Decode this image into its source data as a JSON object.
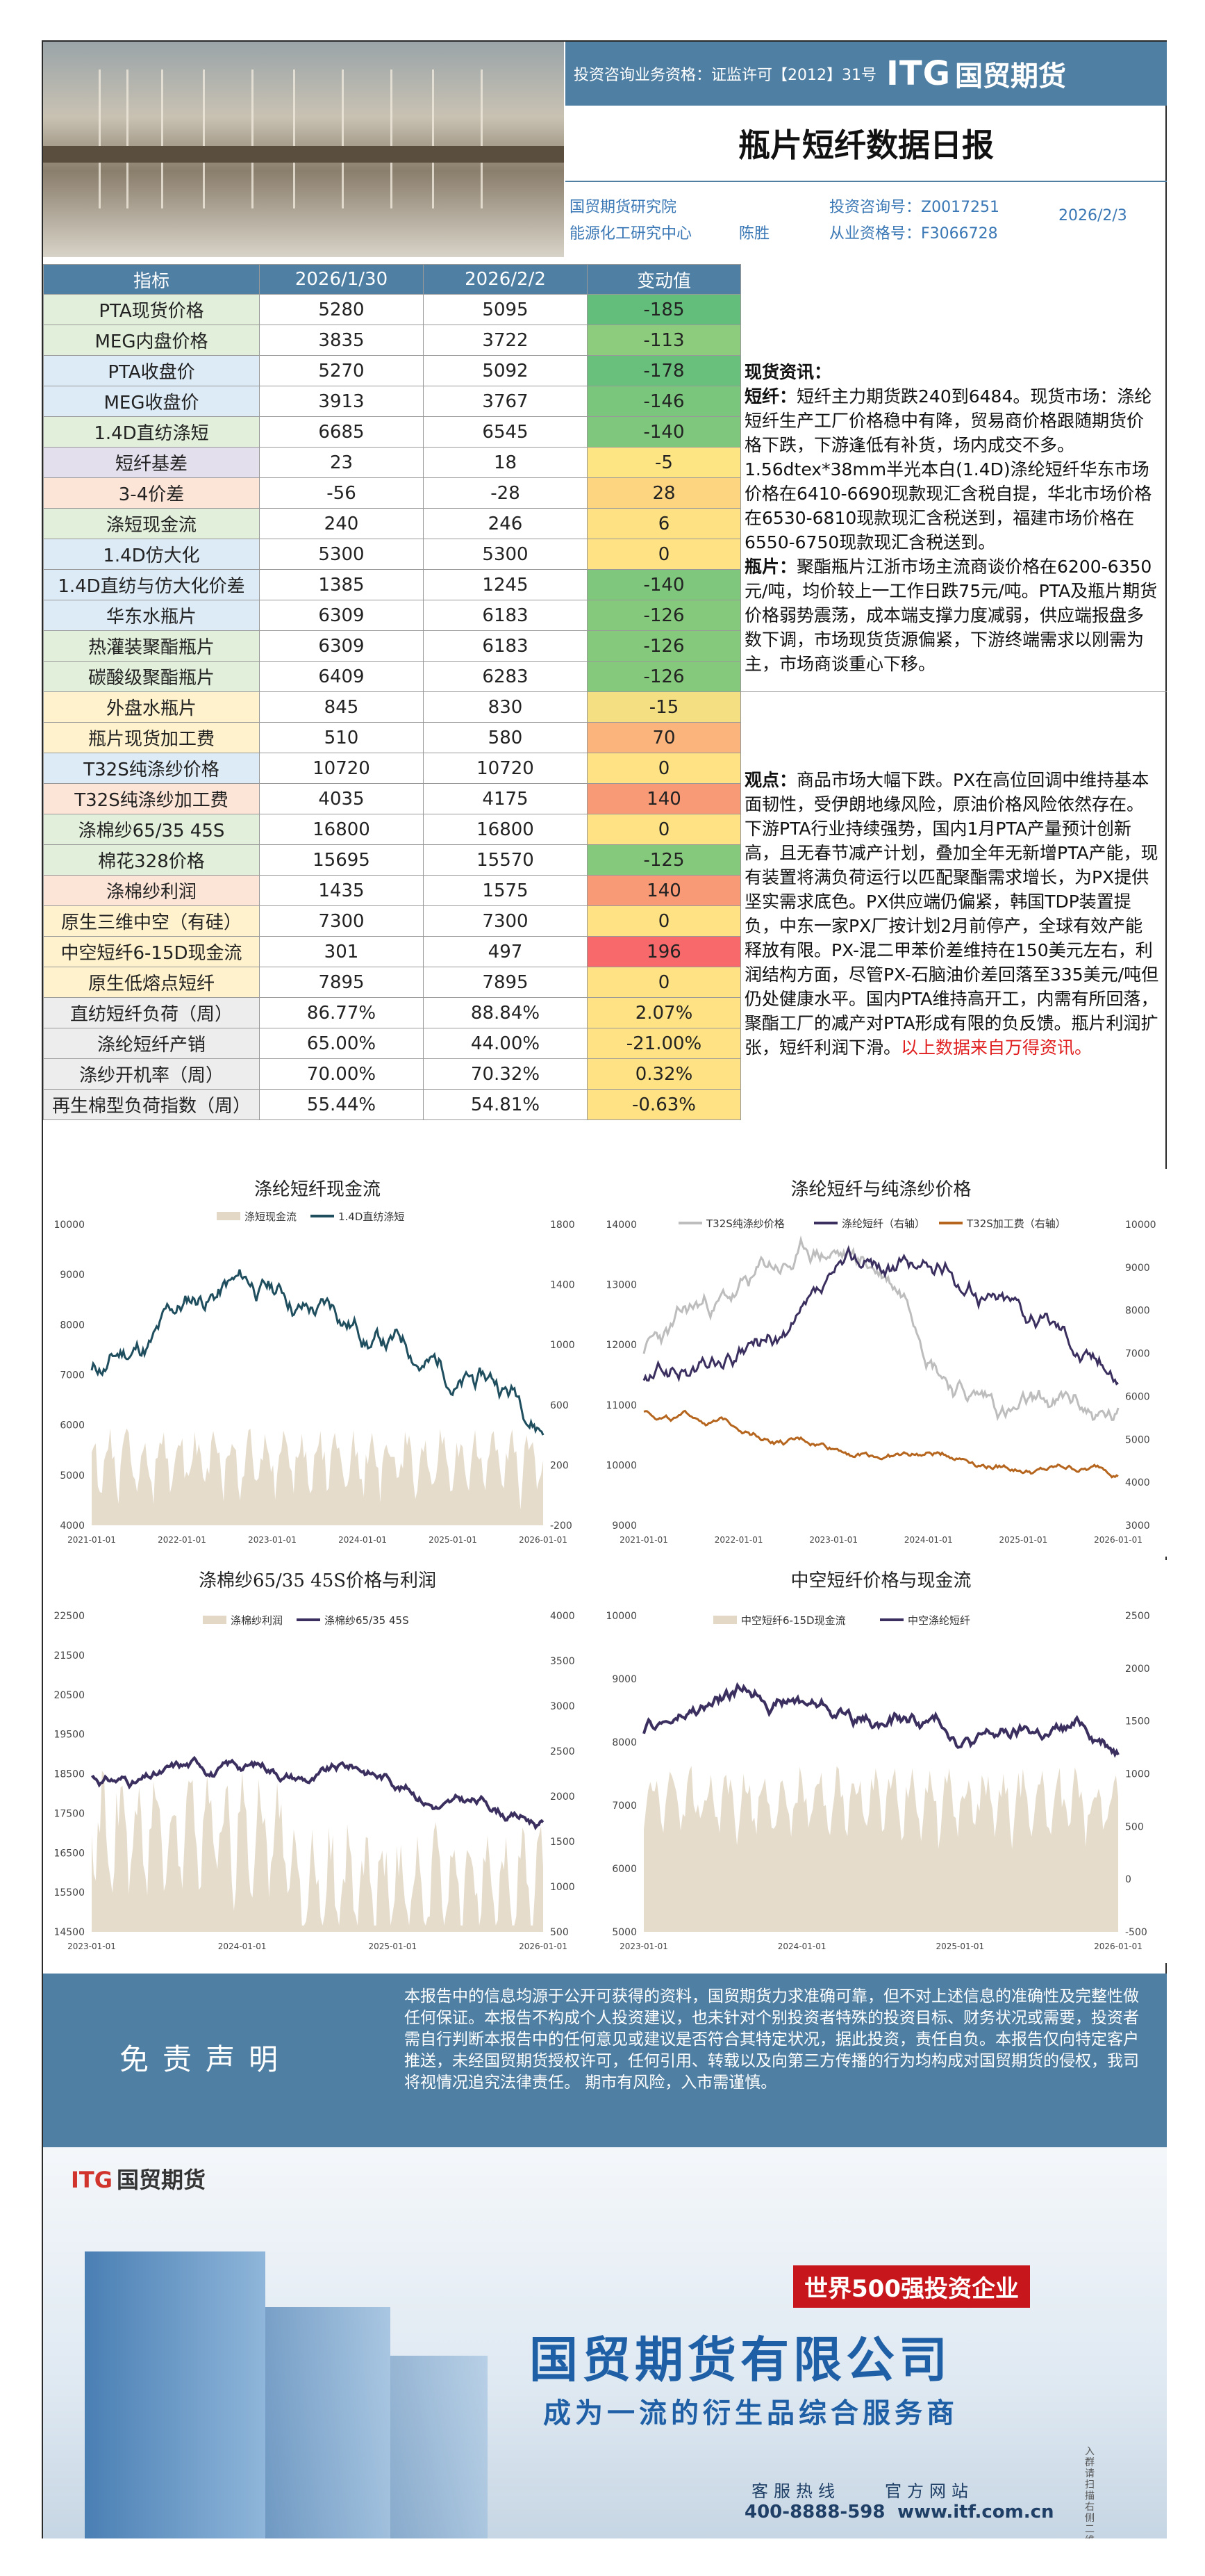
{
  "header": {
    "license": "投资咨询业务资格：证监许可【2012】31号",
    "logo": "ITG",
    "logo_cn": "国贸期货",
    "title": "瓶片短纤数据日报",
    "institute": "国贸期货研究院",
    "center": "能源化工研究中心",
    "author": "陈胜",
    "consult_label": "投资咨询号：Z0017251",
    "practice_label": "从业资格号：F3066728",
    "date": "2026/2/3"
  },
  "table": {
    "headers": [
      "指标",
      "2026/1/30",
      "2026/2/2",
      "变动值"
    ],
    "rows": [
      {
        "name": "PTA现货价格",
        "a": "5280",
        "b": "5095",
        "d": "-185",
        "nc": "#e2efda",
        "dc": "#63be7b"
      },
      {
        "name": "MEG内盘价格",
        "a": "3835",
        "b": "3722",
        "d": "-113",
        "nc": "#e2efda",
        "dc": "#8ccc7c"
      },
      {
        "name": "PTA收盘价",
        "a": "5270",
        "b": "5092",
        "d": "-178",
        "nc": "#ddebf7",
        "dc": "#69c07c"
      },
      {
        "name": "MEG收盘价",
        "a": "3913",
        "b": "3767",
        "d": "-146",
        "nc": "#ddebf7",
        "dc": "#7ac67c"
      },
      {
        "name": "1.4D直纺涤短",
        "a": "6685",
        "b": "6545",
        "d": "-140",
        "nc": "#e2efda",
        "dc": "#7ec77c"
      },
      {
        "name": "短纤基差",
        "a": "23",
        "b": "18",
        "d": "-5",
        "nc": "#e4dfec",
        "dc": "#fde583"
      },
      {
        "name": "3-4价差",
        "a": "-56",
        "b": "-28",
        "d": "28",
        "nc": "#fce4d6",
        "dc": "#fdd480"
      },
      {
        "name": "涤短现金流",
        "a": "240",
        "b": "246",
        "d": "6",
        "nc": "#e2efda",
        "dc": "#fee182"
      },
      {
        "name": "1.4D仿大化",
        "a": "5300",
        "b": "5300",
        "d": "0",
        "nc": "#ddebf7",
        "dc": "#fee283"
      },
      {
        "name": "1.4D直纺与仿大化价差",
        "a": "1385",
        "b": "1245",
        "d": "-140",
        "nc": "#ddebf7",
        "dc": "#7ec77c"
      },
      {
        "name": "华东水瓶片",
        "a": "6309",
        "b": "6183",
        "d": "-126",
        "nc": "#ddebf7",
        "dc": "#85c97c"
      },
      {
        "name": "热灌装聚酯瓶片",
        "a": "6309",
        "b": "6183",
        "d": "-126",
        "nc": "#e2efda",
        "dc": "#85c97c"
      },
      {
        "name": "碳酸级聚酯瓶片",
        "a": "6409",
        "b": "6283",
        "d": "-126",
        "nc": "#e2efda",
        "dc": "#85c97c"
      },
      {
        "name": "外盘水瓶片",
        "a": "845",
        "b": "830",
        "d": "-15",
        "nc": "#fff2cc",
        "dc": "#f4e083"
      },
      {
        "name": "瓶片现货加工费",
        "a": "510",
        "b": "580",
        "d": "70",
        "nc": "#fff2cc",
        "dc": "#fbb47b"
      },
      {
        "name": "T32S纯涤纱价格",
        "a": "10720",
        "b": "10720",
        "d": "0",
        "nc": "#ddebf7",
        "dc": "#fee283"
      },
      {
        "name": "T32S纯涤纱加工费",
        "a": "4035",
        "b": "4175",
        "d": "140",
        "nc": "#fce4d6",
        "dc": "#f99a77"
      },
      {
        "name": "涤棉纱65/35 45S",
        "a": "16800",
        "b": "16800",
        "d": "0",
        "nc": "#e2efda",
        "dc": "#fee283"
      },
      {
        "name": "棉花328价格",
        "a": "15695",
        "b": "15570",
        "d": "-125",
        "nc": "#e2efda",
        "dc": "#85c97c"
      },
      {
        "name": "涤棉纱利润",
        "a": "1435",
        "b": "1575",
        "d": "140",
        "nc": "#fce4d6",
        "dc": "#f99a77"
      },
      {
        "name": "原生三维中空（有硅）",
        "a": "7300",
        "b": "7300",
        "d": "0",
        "nc": "#fff2cc",
        "dc": "#fee283"
      },
      {
        "name": "中空短纤6-15D现金流",
        "a": "301",
        "b": "497",
        "d": "196",
        "nc": "#fff2cc",
        "dc": "#f8696b"
      },
      {
        "name": "原生低熔点短纤",
        "a": "7895",
        "b": "7895",
        "d": "0",
        "nc": "#fff2cc",
        "dc": "#fee283"
      },
      {
        "name": "直纺短纤负荷（周）",
        "a": "86.77%",
        "b": "88.84%",
        "d": "2.07%",
        "nc": "#ededed",
        "dc": "#fee283"
      },
      {
        "name": "涤纶短纤产销",
        "a": "65.00%",
        "b": "44.00%",
        "d": "-21.00%",
        "nc": "#ededed",
        "dc": "#fee283"
      },
      {
        "name": "涤纱开机率（周）",
        "a": "70.00%",
        "b": "70.32%",
        "d": "0.32%",
        "nc": "#ededed",
        "dc": "#fee283"
      },
      {
        "name": "再生棉型负荷指数（周）",
        "a": "55.44%",
        "b": "54.81%",
        "d": "-0.63%",
        "nc": "#ededed",
        "dc": "#fee283"
      }
    ]
  },
  "spot": {
    "heading": "现货资讯：",
    "sf_label": "短纤：",
    "sf_text": "短纤主力期货跌240到6484。现货市场：涤纶短纤生产工厂价格稳中有降，贸易商价格跟随期货价格下跌，下游逢低有补货，场内成交不多。1.56dtex*38mm半光本白(1.4D)涤纶短纤华东市场价格在6410-6690现款现汇含税自提，华北市场价格在6530-6810现款现汇含税送到，福建市场价格在6550-6750现款现汇含税送到。",
    "bp_label": "瓶片：",
    "bp_text": "聚酯瓶片江浙市场主流商谈价格在6200-6350元/吨，均价较上一工作日跌75元/吨。PTA及瓶片期货价格弱势震荡，成本端支撑力度减弱，供应端报盘多数下调，市场现货货源偏紧，下游终端需求以刚需为主，市场商谈重心下移。"
  },
  "view": {
    "label": "观点：",
    "text": "商品市场大幅下跌。PX在高位回调中维持基本面韧性，受伊朗地缘风险，原油价格风险依然存在。下游PTA行业持续强势，国内1月PTA产量预计创新高，且无春节减产计划，叠加全年无新增PTA产能，现有装置将满负荷运行以匹配聚酯需求增长，为PX提供坚实需求底色。PX供应端仍偏紧，韩国TDP装置提负，中东一家PX厂按计划2月前停产，全球有效产能释放有限。PX-混二甲苯价差维持在150美元左右，利润结构方面，尽管PX-石脑油价差回落至335美元/吨但仍处健康水平。国内PTA维持高开工，内需有所回落，聚酯工厂的减产对PTA形成有限的负反馈。瓶片利润扩张，短纤利润下滑。",
    "source": "以上数据来自万得资讯。"
  },
  "charts": [
    {
      "title": "涤纶短纤现金流",
      "xticks": [
        "2021-01-01",
        "2022-01-01",
        "2023-01-01",
        "2024-01-01",
        "2025-01-01",
        "2026-01-01"
      ],
      "yleft": [
        "10000",
        "9000",
        "8000",
        "7000",
        "6000",
        "5000",
        "4000"
      ],
      "yright": [
        "1800",
        "1400",
        "1000",
        "600",
        "200",
        "-200"
      ],
      "legend": [
        "涤短现金流",
        "1.4D直纺涤短"
      ]
    },
    {
      "title": "涤纶短纤与纯涤纱价格",
      "xticks": [
        "2021-01-01",
        "2022-01-01",
        "2023-01-01",
        "2024-01-01",
        "2025-01-01",
        "2026-01-01"
      ],
      "yleft": [
        "14000",
        "13000",
        "12000",
        "11000",
        "10000",
        "9000"
      ],
      "yright": [
        "10000",
        "9000",
        "8000",
        "7000",
        "6000",
        "5000",
        "4000",
        "3000"
      ],
      "legend": [
        "T32S纯涤纱价格",
        "涤纶短纤（右轴）",
        "T32S加工费（右轴）"
      ]
    },
    {
      "title": "涤棉纱65/35 45S价格与利润",
      "xticks": [
        "2023-01-01",
        "2024-01-01",
        "2025-01-01",
        "2026-01-01"
      ],
      "yleft": [
        "22500",
        "21500",
        "20500",
        "19500",
        "18500",
        "17500",
        "16500",
        "15500",
        "14500"
      ],
      "yright": [
        "4000",
        "3500",
        "3000",
        "2500",
        "2000",
        "1500",
        "1000",
        "500"
      ],
      "legend": [
        "涤棉纱利润",
        "涤棉纱65/35 45S"
      ]
    },
    {
      "title": "中空短纤价格与现金流",
      "xticks": [
        "2023-01-01",
        "2024-01-01",
        "2025-01-01",
        "2026-01-01"
      ],
      "yleft": [
        "10000",
        "9000",
        "8000",
        "7000",
        "6000",
        "5000"
      ],
      "yright": [
        "2500",
        "2000",
        "1500",
        "1000",
        "500",
        "0",
        "-500"
      ],
      "legend": [
        "中空短纤6-15D现金流",
        "中空涤纶短纤"
      ]
    }
  ],
  "disclaimer": {
    "title": "免责声明",
    "text": "本报告中的信息均源于公开可获得的资料，国贸期货力求准确可靠，但不对上述信息的准确性及完整性做任何保证。本报告不构成个人投资建议，也未针对个别投资者特殊的投资目标、财务状况或需要，投资者需自行判断本报告中的任何意见或建议是否符合其特定状况，据此投资，责任自负。本报告仅向特定客户推送，未经国贸期货授权许可，任何引用、转载以及向第三方传播的行为均构成对国贸期货的侵权，我司将视情况追究法律责任。 期市有风险，入市需谨慎。"
  },
  "footer": {
    "logo": "ITG",
    "logo_cn": "国贸期货",
    "badge": "世界500强投资企业",
    "company": "国贸期货有限公司",
    "slogan": "成为一流的衍生品综合服务商",
    "service_label": "客服热线",
    "site_label": "官方网站",
    "phone": "400-8888-598",
    "site": "www.itf.com.cn",
    "side": "入群请扫描右侧二维码"
  },
  "colors": {
    "brand": "#4f7fa3",
    "dark_series": "#1f4e5f",
    "purple_series": "#3b2f5f",
    "orange_series": "#b5651d",
    "sand": "#e3d8c6"
  }
}
